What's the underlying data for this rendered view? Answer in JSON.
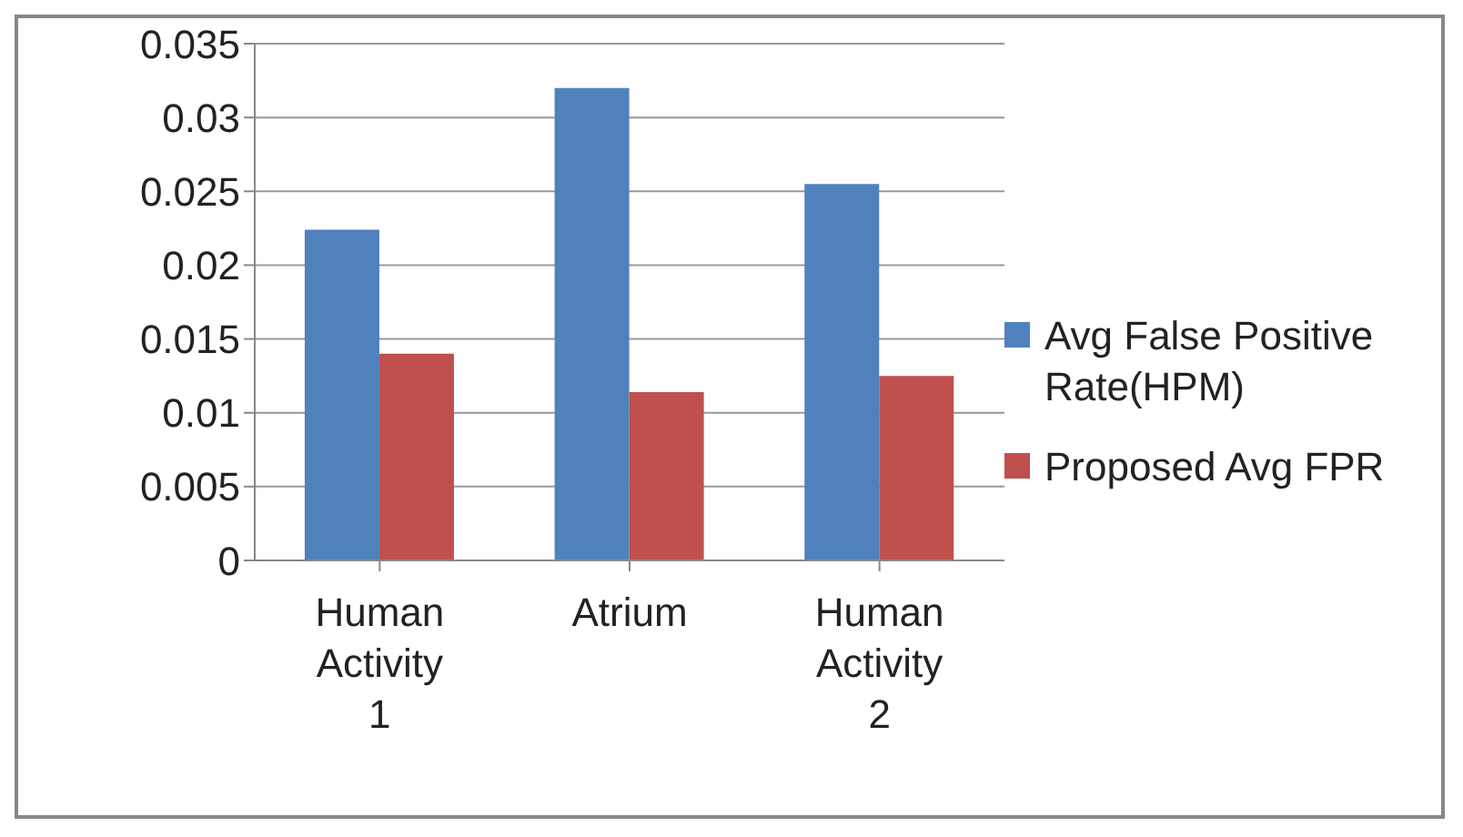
{
  "chart_data": {
    "type": "bar",
    "categories": [
      "Human Activity 1",
      "Atrium",
      "Human Activity 2"
    ],
    "series": [
      {
        "name": "Avg False Positive Rate(HPM)",
        "color": "#4f81bd",
        "values": [
          0.0224,
          0.032,
          0.0255
        ]
      },
      {
        "name": "Proposed Avg FPR",
        "color": "#c0504d",
        "values": [
          0.014,
          0.0114,
          0.0125
        ]
      }
    ],
    "ylim": [
      0,
      0.035
    ],
    "yticks": [
      0,
      0.005,
      0.01,
      0.015,
      0.02,
      0.025,
      0.03,
      0.035
    ],
    "grid": "y",
    "legend": "right"
  }
}
